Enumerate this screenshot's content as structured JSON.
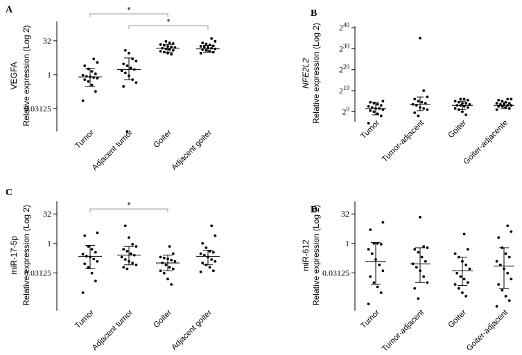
{
  "chart_data": [
    {
      "panel": "A",
      "type": "scatter",
      "gene_label": "VEGFA",
      "ylabel": "Relative expression (Log 2)",
      "scale": "log2",
      "ylim": [
        0.004,
        200
      ],
      "yticks": [
        {
          "value": 32,
          "label": "32"
        },
        {
          "value": 1,
          "label": "1"
        },
        {
          "value": 0.03125,
          "label": "0.03125"
        }
      ],
      "categories": [
        "Tumor",
        "Adjacent tumor",
        "Goiter",
        "Adjacent goiter"
      ],
      "summary": [
        {
          "center": 0.8,
          "lower": 0.3,
          "upper": 1.9
        },
        {
          "center": 1.7,
          "lower": 0.6,
          "upper": 5.5
        },
        {
          "center": 15,
          "lower": 10,
          "upper": 22
        },
        {
          "center": 14,
          "lower": 10,
          "upper": 20
        }
      ],
      "series": [
        {
          "name": "Tumor",
          "values": [
            0.07,
            0.18,
            0.35,
            0.5,
            0.6,
            0.7,
            0.75,
            0.8,
            0.85,
            0.95,
            1.1,
            1.4,
            1.8,
            2.5,
            3.5,
            5.0
          ]
        },
        {
          "name": "Adjacent tumor",
          "values": [
            0.003,
            0.3,
            0.45,
            0.6,
            0.9,
            1.2,
            1.5,
            1.7,
            2.0,
            2.5,
            3.0,
            4.0,
            5.0,
            9.0,
            12.0
          ]
        },
        {
          "name": "Goiter",
          "values": [
            8.0,
            9.0,
            10.0,
            11.0,
            12.0,
            13.0,
            14.0,
            15.0,
            16.0,
            17.0,
            18.0,
            20.0,
            22.0,
            24.0,
            26.0,
            30.0
          ]
        },
        {
          "name": "Adjacent goiter",
          "values": [
            9.0,
            10.0,
            11.0,
            12.0,
            13.0,
            14.0,
            15.0,
            16.0,
            17.0,
            18.0,
            19.0,
            21.0,
            23.0,
            26.0,
            30.0,
            40.0
          ]
        }
      ],
      "significance": [
        {
          "from": 0,
          "to": 2,
          "label": "*"
        },
        {
          "from": 1,
          "to": 3,
          "label": "*"
        }
      ]
    },
    {
      "panel": "B",
      "type": "scatter",
      "gene_label": "NFE2L2",
      "gene_italic": true,
      "ylabel": "Relative expression (Log 2)",
      "scale": "log2",
      "ylim": [
        -3.5,
        40
      ],
      "yticks": [
        {
          "exp": 0,
          "base": "2",
          "sup": "0"
        },
        {
          "exp": 10,
          "base": "2",
          "sup": "10"
        },
        {
          "exp": 20,
          "base": "2",
          "sup": "20"
        },
        {
          "exp": 30,
          "base": "2",
          "sup": "30"
        },
        {
          "exp": 40,
          "base": "2",
          "sup": "40"
        }
      ],
      "categories": [
        "Tumor",
        "Tumor-adjacent",
        "Goiter",
        "Goiter-adjacente"
      ],
      "summary": [
        {
          "center": 1.5,
          "lower": -1.5,
          "upper": 4.5
        },
        {
          "center": 3.5,
          "lower": 0.5,
          "upper": 7.0
        },
        {
          "center": 3.0,
          "lower": 1.0,
          "upper": 5.0
        },
        {
          "center": 3.0,
          "lower": 1.5,
          "upper": 4.5
        }
      ],
      "series": [
        {
          "name": "Tumor",
          "values": [
            -6,
            -2,
            -1,
            0,
            0.5,
            1,
            1.5,
            1.5,
            2,
            2.5,
            3,
            3.5,
            4,
            4.5,
            5
          ]
        },
        {
          "name": "Tumor-adjacent",
          "values": [
            -2,
            -0.5,
            1,
            1.5,
            2,
            3,
            3.5,
            4,
            4.5,
            5,
            6,
            7,
            10,
            35
          ]
        },
        {
          "name": "Goiter",
          "values": [
            -1.5,
            0,
            1,
            1.5,
            2,
            2.5,
            3,
            3,
            3.5,
            4,
            4,
            4.5,
            5,
            5.5,
            6,
            6
          ]
        },
        {
          "name": "Goiter-adjacente",
          "values": [
            1,
            1.5,
            2,
            2.5,
            2.5,
            3,
            3,
            3.5,
            3.5,
            4,
            4,
            4.5,
            5,
            5.5,
            6,
            6
          ]
        }
      ]
    },
    {
      "panel": "C",
      "type": "scatter",
      "gene_label": "miR-17-5p",
      "ylabel": "Relative expression (Log 2)",
      "scale": "log2",
      "ylim": [
        0.0005,
        120
      ],
      "yticks": [
        {
          "value": 32,
          "label": "32"
        },
        {
          "value": 1,
          "label": "1"
        },
        {
          "value": 0.03125,
          "label": "0.03125"
        }
      ],
      "categories": [
        "Tumor",
        "Adjacent tumor",
        "Goiter",
        "Adjacent goiter"
      ],
      "summary": [
        {
          "center": 0.22,
          "lower": 0.05,
          "upper": 0.8
        },
        {
          "center": 0.25,
          "lower": 0.08,
          "upper": 0.7
        },
        {
          "center": 0.1,
          "lower": 0.04,
          "upper": 0.25
        },
        {
          "center": 0.22,
          "lower": 0.08,
          "upper": 0.45
        }
      ],
      "series": [
        {
          "name": "Tumor",
          "values": [
            0.003,
            0.012,
            0.03,
            0.06,
            0.09,
            0.12,
            0.16,
            0.2,
            0.22,
            0.28,
            0.35,
            0.5,
            0.7,
            2.5,
            3.5
          ]
        },
        {
          "name": "Adjacent tumor",
          "values": [
            0.05,
            0.06,
            0.08,
            0.1,
            0.12,
            0.15,
            0.2,
            0.25,
            0.3,
            0.4,
            0.5,
            0.7,
            0.9,
            2.0,
            8.0
          ]
        },
        {
          "name": "Goiter",
          "values": [
            0.008,
            0.015,
            0.03,
            0.04,
            0.05,
            0.06,
            0.08,
            0.1,
            0.12,
            0.14,
            0.16,
            0.18,
            0.2,
            0.3,
            0.7
          ]
        },
        {
          "name": "Adjacent goiter",
          "values": [
            0.035,
            0.04,
            0.06,
            0.08,
            0.1,
            0.12,
            0.15,
            0.2,
            0.25,
            0.3,
            0.35,
            0.4,
            0.6,
            1.0,
            2.5,
            8.0
          ]
        }
      ],
      "significance": [
        {
          "from": 0,
          "to": 2,
          "label": "*"
        }
      ]
    },
    {
      "panel": "D",
      "type": "scatter",
      "gene_label": "miR-612",
      "ylabel": "Relative expression (Log 2)",
      "scale": "log2",
      "ylim": [
        0.0005,
        120
      ],
      "yticks": [
        {
          "value": 32,
          "label": "32"
        },
        {
          "value": 1,
          "label": "1"
        },
        {
          "value": 0.03125,
          "label": "0.03125"
        }
      ],
      "categories": [
        "Tumor",
        "Tumor-adjacent",
        "Goiter",
        "Goiter-adjacent"
      ],
      "summary": [
        {
          "center": 0.12,
          "lower": 0.008,
          "upper": 1.1
        },
        {
          "center": 0.09,
          "lower": 0.01,
          "upper": 0.6
        },
        {
          "center": 0.04,
          "lower": 0.007,
          "upper": 0.2
        },
        {
          "center": 0.07,
          "lower": 0.005,
          "upper": 0.6
        }
      ],
      "series": [
        {
          "name": "Tumor",
          "values": [
            0.0008,
            0.003,
            0.006,
            0.01,
            0.02,
            0.04,
            0.08,
            0.15,
            0.3,
            0.5,
            0.9,
            1.0,
            1.0,
            5.0,
            12.0
          ]
        },
        {
          "name": "Tumor-adjacent",
          "values": [
            0.0015,
            0.005,
            0.01,
            0.02,
            0.04,
            0.06,
            0.09,
            0.12,
            0.2,
            0.35,
            0.5,
            0.6,
            0.7,
            22.0
          ]
        },
        {
          "name": "Goiter",
          "values": [
            0.002,
            0.003,
            0.005,
            0.008,
            0.01,
            0.015,
            0.02,
            0.03,
            0.05,
            0.08,
            0.12,
            0.2,
            0.3,
            0.5,
            3.0
          ]
        },
        {
          "name": "Goiter-adjacent",
          "values": [
            0.0006,
            0.0012,
            0.002,
            0.004,
            0.008,
            0.015,
            0.03,
            0.05,
            0.08,
            0.12,
            0.2,
            0.3,
            0.6,
            2.0,
            4.0,
            8.0
          ]
        }
      ]
    }
  ]
}
